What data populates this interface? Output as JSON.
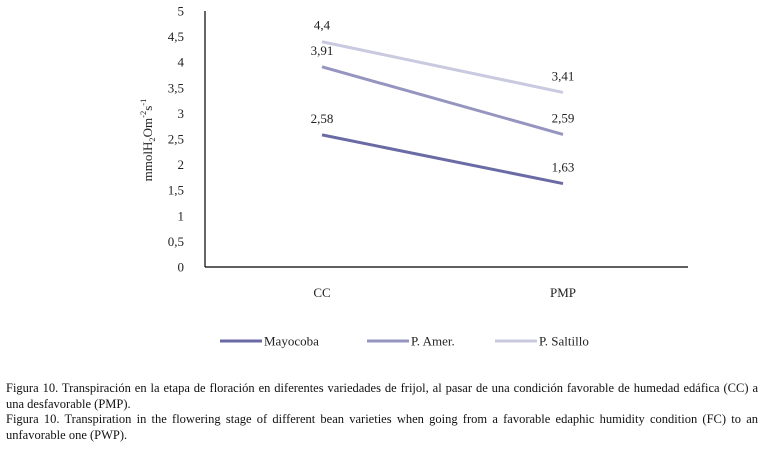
{
  "chart_data": {
    "type": "line",
    "categories": [
      "CC",
      "PMP"
    ],
    "series": [
      {
        "name": "Mayocoba",
        "values": [
          2.58,
          1.63
        ],
        "labels": [
          "2,58",
          "1,63"
        ],
        "color": "#6a6aa4"
      },
      {
        "name": "P. Amer.",
        "values": [
          3.91,
          2.59
        ],
        "labels": [
          "3,91",
          "2,59"
        ],
        "color": "#9595c0"
      },
      {
        "name": "P. Saltillo",
        "values": [
          4.4,
          3.41
        ],
        "labels": [
          "4,4",
          "3,41"
        ],
        "color": "#c9c9df"
      }
    ],
    "ylim": [
      0,
      5
    ],
    "yticks": [
      0,
      0.5,
      1,
      1.5,
      2,
      2.5,
      3,
      3.5,
      4,
      4.5,
      5
    ],
    "ytick_labels": [
      "0",
      "0,5",
      "1",
      "1,5",
      "2",
      "2,5",
      "3",
      "3,5",
      "4",
      "4,5",
      "5"
    ],
    "ylabel": {
      "prefix": "mmolH",
      "sub1": "2",
      "mid": "Om",
      "sup1": "-2",
      "mid2": "s",
      "sup2": "-1"
    },
    "xlabel": "",
    "legend_position": "bottom"
  },
  "caption": {
    "spanish": "Figura 10. Transpiración en la etapa de floración en diferentes variedades de frijol, al pasar de una condición favorable de humedad edáfica (CC) a una desfavorable (PMP).",
    "english": "Figura 10. Transpiration in the flowering stage of different bean varieties when going from a favorable edaphic humidity condition (FC) to an unfavorable one (PWP)."
  }
}
